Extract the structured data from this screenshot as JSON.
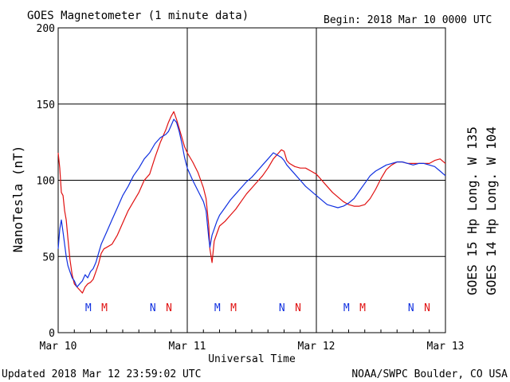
{
  "header": {
    "title": "GOES Magnetometer (1 minute data)",
    "begin": "Begin:  2018 Mar 10 0000 UTC"
  },
  "footer": {
    "updated": "Updated 2018 Mar 12 23:59:02 UTC",
    "source": "NOAA/SWPC Boulder, CO USA"
  },
  "colors": {
    "goes15": "#e01010",
    "goes14": "#1030e0",
    "grid": "#000000"
  },
  "chart_data": {
    "type": "line",
    "title": "GOES Magnetometer (1 minute data)",
    "xlabel": "Universal Time",
    "ylabel": "NanoTesla (nT)",
    "x_unit": "hours since 2018 Mar 10 0000 UTC",
    "xlim": [
      0,
      72
    ],
    "ylim": [
      0,
      200
    ],
    "x_ticks": [
      {
        "x": 0,
        "label": "Mar 10"
      },
      {
        "x": 24,
        "label": "Mar 11"
      },
      {
        "x": 48,
        "label": "Mar 12"
      },
      {
        "x": 72,
        "label": "Mar 13"
      }
    ],
    "y_ticks": [
      0,
      50,
      100,
      150,
      200
    ],
    "grid": true,
    "legend_placement": "right (vertical)",
    "series": [
      {
        "name": "GOES 15 Hp  Long. W 135",
        "color": "#e01010",
        "x": [
          0,
          0.3,
          0.6,
          0.9,
          1.2,
          1.5,
          1.8,
          2.2,
          2.6,
          3.0,
          3.5,
          4.0,
          4.5,
          5.0,
          5.5,
          6.0,
          6.5,
          7.0,
          7.5,
          8.0,
          8.5,
          9.0,
          10.0,
          11.0,
          12.0,
          13.0,
          14.0,
          15.0,
          16.0,
          17.0,
          18.0,
          19.0,
          20.0,
          20.5,
          21.0,
          21.5,
          22.0,
          22.5,
          23.0,
          23.5,
          24.0,
          25.0,
          26.0,
          27.0,
          27.5,
          28.0,
          28.2,
          28.6,
          29.0,
          29.5,
          30.0,
          31.0,
          32.0,
          33.0,
          34.0,
          35.0,
          36.0,
          37.0,
          38.0,
          39.0,
          40.0,
          41.0,
          41.5,
          42.0,
          42.5,
          43.0,
          44.0,
          45.0,
          46.0,
          47.0,
          48.0,
          49.0,
          50.0,
          51.0,
          52.0,
          53.0,
          54.0,
          55.0,
          56.0,
          57.0,
          58.0,
          59.0,
          60.0,
          61.0,
          62.0,
          63.0,
          64.0,
          65.0,
          66.0,
          67.0,
          68.0,
          69.0,
          70.0,
          71.0,
          72.0
        ],
        "y": [
          118,
          108,
          92,
          90,
          80,
          74,
          62,
          48,
          38,
          32,
          30,
          28,
          26,
          30,
          32,
          33,
          35,
          40,
          45,
          52,
          55,
          56,
          58,
          64,
          72,
          80,
          86,
          92,
          100,
          104,
          115,
          125,
          133,
          138,
          142,
          145,
          140,
          134,
          128,
          122,
          118,
          112,
          105,
          95,
          88,
          70,
          55,
          46,
          60,
          65,
          70,
          73,
          77,
          81,
          86,
          91,
          95,
          99,
          103,
          108,
          114,
          118,
          120,
          119,
          113,
          111,
          109,
          108,
          108,
          106,
          104,
          100,
          96,
          92,
          89,
          86,
          84,
          83,
          83,
          84,
          88,
          94,
          101,
          107,
          110,
          112,
          112,
          111,
          111,
          111,
          111,
          111,
          113,
          114,
          111
        ]
      },
      {
        "name": "GOES 14 Hp  Long. W 104",
        "color": "#1030e0",
        "x": [
          0,
          0.3,
          0.6,
          0.9,
          1.2,
          1.5,
          1.8,
          2.2,
          2.6,
          3.0,
          3.5,
          4.0,
          4.5,
          5.0,
          5.5,
          6.0,
          6.5,
          7.0,
          7.5,
          8.0,
          8.5,
          9.0,
          10.0,
          11.0,
          12.0,
          13.0,
          14.0,
          15.0,
          16.0,
          17.0,
          18.0,
          19.0,
          20.0,
          20.5,
          21.0,
          21.5,
          22.0,
          22.5,
          23.0,
          23.5,
          24.0,
          25.0,
          26.0,
          27.0,
          27.5,
          28.0,
          28.2,
          28.6,
          29.0,
          29.5,
          30.0,
          31.0,
          32.0,
          33.0,
          34.0,
          35.0,
          36.0,
          37.0,
          38.0,
          39.0,
          40.0,
          41.0,
          41.5,
          42.0,
          42.5,
          43.0,
          44.0,
          45.0,
          46.0,
          47.0,
          48.0,
          49.0,
          50.0,
          51.0,
          52.0,
          53.0,
          54.0,
          55.0,
          56.0,
          57.0,
          58.0,
          59.0,
          60.0,
          61.0,
          62.0,
          63.0,
          64.0,
          65.0,
          66.0,
          67.0,
          68.0,
          69.0,
          70.0,
          71.0,
          72.0
        ],
        "y": [
          55,
          68,
          74,
          66,
          58,
          50,
          44,
          40,
          36,
          34,
          30,
          32,
          34,
          38,
          36,
          40,
          42,
          46,
          52,
          58,
          62,
          66,
          74,
          82,
          90,
          96,
          103,
          108,
          114,
          118,
          124,
          128,
          130,
          132,
          136,
          140,
          138,
          132,
          124,
          115,
          108,
          100,
          93,
          86,
          80,
          62,
          56,
          64,
          68,
          73,
          77,
          82,
          87,
          91,
          95,
          99,
          102,
          106,
          110,
          114,
          118,
          116,
          115,
          113,
          110,
          108,
          104,
          100,
          96,
          93,
          90,
          87,
          84,
          83,
          82,
          83,
          85,
          88,
          93,
          98,
          103,
          106,
          108,
          110,
          111,
          112,
          112,
          111,
          110,
          111,
          111,
          110,
          109,
          106,
          103
        ]
      }
    ],
    "annotations": [
      {
        "text": "M",
        "x": 5.6,
        "series": "GOES 14"
      },
      {
        "text": "M",
        "x": 8.6,
        "series": "GOES 15"
      },
      {
        "text": "N",
        "x": 17.6,
        "series": "GOES 14"
      },
      {
        "text": "N",
        "x": 20.6,
        "series": "GOES 15"
      },
      {
        "text": "M",
        "x": 29.6,
        "series": "GOES 14"
      },
      {
        "text": "M",
        "x": 32.6,
        "series": "GOES 15"
      },
      {
        "text": "N",
        "x": 41.6,
        "series": "GOES 14"
      },
      {
        "text": "N",
        "x": 44.6,
        "series": "GOES 15"
      },
      {
        "text": "M",
        "x": 53.6,
        "series": "GOES 14"
      },
      {
        "text": "M",
        "x": 56.6,
        "series": "GOES 15"
      },
      {
        "text": "N",
        "x": 65.6,
        "series": "GOES 14"
      },
      {
        "text": "N",
        "x": 68.6,
        "series": "GOES 15"
      }
    ]
  }
}
